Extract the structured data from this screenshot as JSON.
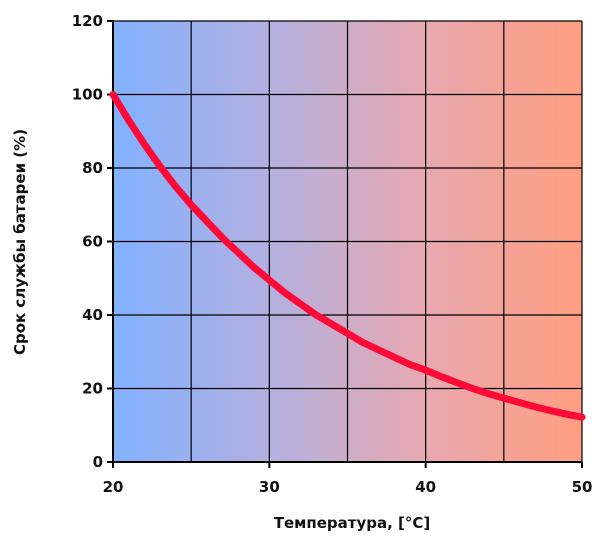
{
  "chart_data": {
    "type": "line",
    "xlabel": "Температура, [°C]",
    "ylabel": "Срок службы батареи (%)",
    "xlim": [
      20,
      50
    ],
    "ylim": [
      0,
      120
    ],
    "x_ticks": [
      20,
      30,
      40,
      50
    ],
    "x_tick_labels": [
      "20",
      "30",
      "40",
      "50"
    ],
    "y_ticks": [
      0,
      20,
      40,
      60,
      80,
      100,
      120
    ],
    "y_tick_labels": [
      "0",
      "20",
      "40",
      "60",
      "80",
      "100",
      "120"
    ],
    "x_gridlines": [
      20,
      25,
      30,
      35,
      40,
      45,
      50
    ],
    "y_gridlines": [
      0,
      20,
      40,
      60,
      80,
      100,
      120
    ],
    "grid": true,
    "legend": "none",
    "background_gradient": [
      "#82b1ff",
      "#b3b0e0",
      "#e8a8b0",
      "#ff9e80"
    ],
    "series": [
      {
        "color": "#ff0a37",
        "x": [
          20,
          21,
          22,
          23,
          24,
          25,
          26,
          27,
          28,
          29,
          30,
          31,
          32,
          33,
          34,
          35,
          36,
          37,
          38,
          39,
          40,
          41,
          42,
          43,
          44,
          45,
          46,
          47,
          48,
          49,
          50
        ],
        "y": [
          100,
          93,
          86.5,
          80.5,
          75,
          70,
          65.5,
          61,
          57,
          53,
          49.5,
          46,
          43,
          40,
          37.5,
          35,
          32.5,
          30.5,
          28.5,
          26.5,
          25,
          23.2,
          21.6,
          20,
          18.6,
          17.4,
          16.2,
          15,
          14,
          13,
          12.2
        ]
      }
    ]
  }
}
